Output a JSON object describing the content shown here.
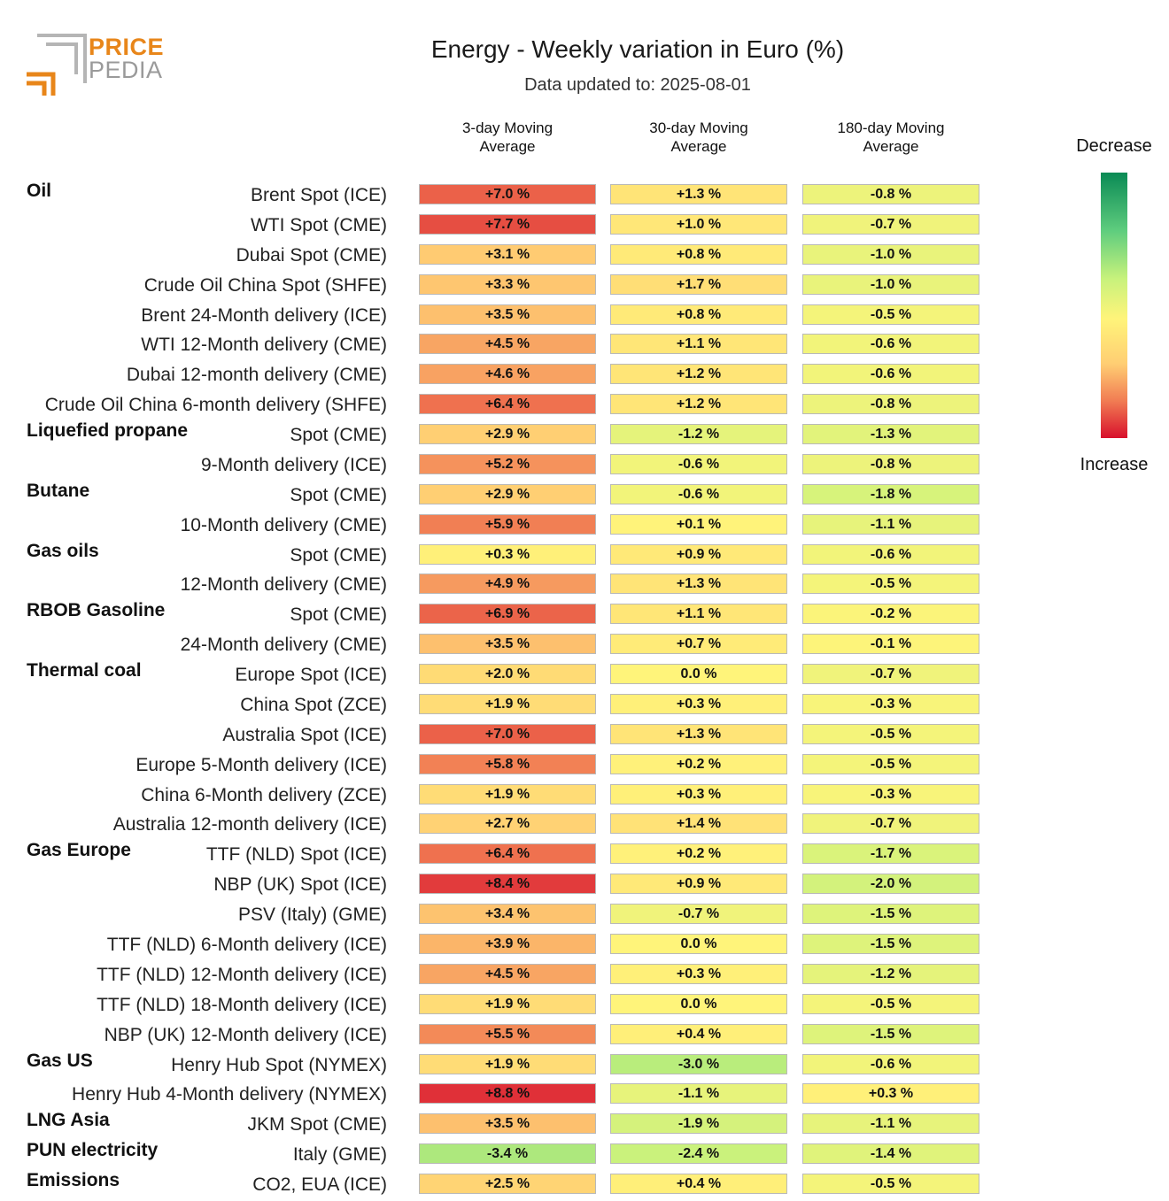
{
  "header": {
    "logo_line1": "PRICE",
    "logo_line2": "PEDIA",
    "title": "Energy - Weekly variation in Euro (%)",
    "subtitle": "Data updated to: 2025-08-01"
  },
  "legend": {
    "top_label": "Decrease",
    "bottom_label": "Increase"
  },
  "colors": {
    "scale": [
      "#d8102c",
      "#f17c53",
      "#ffce73",
      "#fff47a",
      "#c8f27c",
      "#5fcd7e",
      "#0a8a55"
    ],
    "logo_orange": "#e8861a",
    "logo_gray": "#9a9a9a"
  },
  "chart_data": {
    "type": "table",
    "title": "Energy - Weekly variation in Euro (%)",
    "columns": [
      "3-day Moving Average",
      "30-day Moving Average",
      "180-day Moving Average"
    ],
    "unit": "%",
    "rows": [
      {
        "group": "Oil",
        "label": "Brent Spot (ICE)",
        "values": [
          "+7.0 %",
          "+1.3 %",
          "-0.8 %"
        ]
      },
      {
        "group": "",
        "label": "WTI Spot (CME)",
        "values": [
          "+7.7 %",
          "+1.0 %",
          "-0.7 %"
        ]
      },
      {
        "group": "",
        "label": "Dubai Spot (CME)",
        "values": [
          "+3.1 %",
          "+0.8 %",
          "-1.0 %"
        ]
      },
      {
        "group": "",
        "label": "Crude Oil China Spot (SHFE)",
        "values": [
          "+3.3 %",
          "+1.7 %",
          "-1.0 %"
        ]
      },
      {
        "group": "",
        "label": "Brent 24-Month delivery (ICE)",
        "values": [
          "+3.5 %",
          "+0.8 %",
          "-0.5 %"
        ]
      },
      {
        "group": "",
        "label": "WTI 12-Month delivery (CME)",
        "values": [
          "+4.5 %",
          "+1.1 %",
          "-0.6 %"
        ]
      },
      {
        "group": "",
        "label": "Dubai 12-month delivery (CME)",
        "values": [
          "+4.6 %",
          "+1.2 %",
          "-0.6 %"
        ]
      },
      {
        "group": "",
        "label": "Crude Oil China 6-month delivery (SHFE)",
        "values": [
          "+6.4 %",
          "+1.2 %",
          "-0.8 %"
        ]
      },
      {
        "group": "Liquefied propane",
        "label": "Spot (CME)",
        "values": [
          "+2.9 %",
          "-1.2 %",
          "-1.3 %"
        ]
      },
      {
        "group": "",
        "label": "9-Month delivery (ICE)",
        "values": [
          "+5.2 %",
          "-0.6 %",
          "-0.8 %"
        ]
      },
      {
        "group": "Butane",
        "label": "Spot (CME)",
        "values": [
          "+2.9 %",
          "-0.6 %",
          "-1.8 %"
        ]
      },
      {
        "group": "",
        "label": "10-Month delivery (CME)",
        "values": [
          "+5.9 %",
          "+0.1 %",
          "-1.1 %"
        ]
      },
      {
        "group": "Gas oils",
        "label": "Spot (CME)",
        "values": [
          "+0.3 %",
          "+0.9 %",
          "-0.6 %"
        ]
      },
      {
        "group": "",
        "label": "12-Month delivery (CME)",
        "values": [
          "+4.9 %",
          "+1.3 %",
          "-0.5 %"
        ]
      },
      {
        "group": "RBOB Gasoline",
        "label": "Spot (CME)",
        "values": [
          "+6.9 %",
          "+1.1 %",
          "-0.2 %"
        ]
      },
      {
        "group": "",
        "label": "24-Month delivery (CME)",
        "values": [
          "+3.5 %",
          "+0.7 %",
          "-0.1 %"
        ]
      },
      {
        "group": "Thermal coal",
        "label": "Europe Spot (ICE)",
        "values": [
          "+2.0 %",
          "0.0 %",
          "-0.7 %"
        ]
      },
      {
        "group": "",
        "label": "China Spot (ZCE)",
        "values": [
          "+1.9 %",
          "+0.3 %",
          "-0.3 %"
        ]
      },
      {
        "group": "",
        "label": "Australia Spot (ICE)",
        "values": [
          "+7.0 %",
          "+1.3 %",
          "-0.5 %"
        ]
      },
      {
        "group": "",
        "label": "Europe 5-Month delivery (ICE)",
        "values": [
          "+5.8 %",
          "+0.2 %",
          "-0.5 %"
        ]
      },
      {
        "group": "",
        "label": "China 6-Month delivery (ZCE)",
        "values": [
          "+1.9 %",
          "+0.3 %",
          "-0.3 %"
        ]
      },
      {
        "group": "",
        "label": "Australia 12-month delivery (ICE)",
        "values": [
          "+2.7 %",
          "+1.4 %",
          "-0.7 %"
        ]
      },
      {
        "group": "Gas Europe",
        "label": "TTF (NLD) Spot (ICE)",
        "values": [
          "+6.4 %",
          "+0.2 %",
          "-1.7 %"
        ]
      },
      {
        "group": "",
        "label": "NBP (UK) Spot (ICE)",
        "values": [
          "+8.4 %",
          "+0.9 %",
          "-2.0 %"
        ]
      },
      {
        "group": "",
        "label": "PSV (Italy) (GME)",
        "values": [
          "+3.4 %",
          "-0.7 %",
          "-1.5 %"
        ]
      },
      {
        "group": "",
        "label": "TTF (NLD) 6-Month delivery (ICE)",
        "values": [
          "+3.9 %",
          "0.0 %",
          "-1.5 %"
        ]
      },
      {
        "group": "",
        "label": "TTF (NLD) 12-Month delivery (ICE)",
        "values": [
          "+4.5 %",
          "+0.3 %",
          "-1.2 %"
        ]
      },
      {
        "group": "",
        "label": "TTF (NLD) 18-Month delivery (ICE)",
        "values": [
          "+1.9 %",
          "0.0 %",
          "-0.5 %"
        ]
      },
      {
        "group": "",
        "label": "NBP (UK) 12-Month delivery (ICE)",
        "values": [
          "+5.5 %",
          "+0.4 %",
          "-1.5 %"
        ]
      },
      {
        "group": "Gas US",
        "label": "Henry Hub Spot (NYMEX)",
        "values": [
          "+1.9 %",
          "-3.0 %",
          "-0.6 %"
        ]
      },
      {
        "group": "",
        "label": "Henry Hub 4-Month delivery (NYMEX)",
        "values": [
          "+8.8 %",
          "-1.1 %",
          "+0.3 %"
        ]
      },
      {
        "group": "LNG Asia",
        "label": "JKM Spot (CME)",
        "values": [
          "+3.5 %",
          "-1.9 %",
          "-1.1 %"
        ]
      },
      {
        "group": "PUN electricity",
        "label": "Italy (GME)",
        "values": [
          "-3.4 %",
          "-2.4 %",
          "-1.4 %"
        ]
      },
      {
        "group": "Emissions",
        "label": "CO2, EUA (ICE)",
        "values": [
          "+2.5 %",
          "+0.4 %",
          "-0.5 %"
        ]
      }
    ]
  }
}
